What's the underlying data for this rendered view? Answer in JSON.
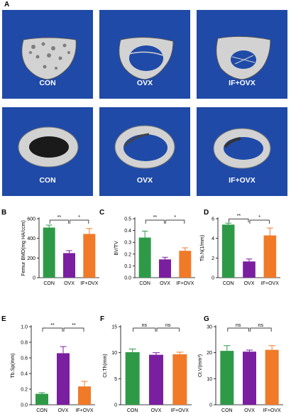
{
  "figure": {
    "panel_A_letter": "A",
    "ct_rows": [
      {
        "view": "trabecular",
        "tiles": [
          {
            "label": "CON",
            "state": "dense"
          },
          {
            "label": "OVX",
            "state": "sparse"
          },
          {
            "label": "IF+OVX",
            "state": "mid"
          }
        ]
      },
      {
        "view": "cortical",
        "tiles": [
          {
            "label": "CON",
            "state": "ring"
          },
          {
            "label": "OVX",
            "state": "ring"
          },
          {
            "label": "IF+OVX",
            "state": "ring"
          }
        ]
      }
    ]
  },
  "colors": {
    "CON": "#2e9a48",
    "OVX": "#7a1fa0",
    "IF+OVX": "#f07a28",
    "ct_background": "#1f4aa7",
    "bone": "#d2d2d2"
  },
  "chart_data": [
    {
      "panel": "B",
      "type": "bar",
      "categories": [
        "CON",
        "OVX",
        "IF+OVX"
      ],
      "values": [
        510,
        250,
        445
      ],
      "errors": [
        25,
        25,
        55
      ],
      "ylabel": "Femur BMD(mg HA/ccm)",
      "ylim": [
        0,
        600
      ],
      "yticks": [
        "0",
        "200",
        "400",
        "600"
      ],
      "sig": [
        {
          "pair": [
            0,
            1
          ],
          "label": "**"
        },
        {
          "pair": [
            1,
            2
          ],
          "label": "*"
        }
      ]
    },
    {
      "panel": "C",
      "type": "bar",
      "categories": [
        "CON",
        "OVX",
        "IF+OVX"
      ],
      "values": [
        0.34,
        0.155,
        0.228
      ],
      "errors": [
        0.055,
        0.018,
        0.025
      ],
      "ylabel": "BV/TV",
      "ylim": [
        0,
        0.5
      ],
      "yticks": [
        "0.0",
        "0.1",
        "0.2",
        "0.3",
        "0.4",
        "0.5"
      ],
      "sig": [
        {
          "pair": [
            0,
            1
          ],
          "label": "**"
        },
        {
          "pair": [
            1,
            2
          ],
          "label": "*"
        }
      ]
    },
    {
      "panel": "D",
      "type": "bar",
      "categories": [
        "CON",
        "OVX",
        "IF+OVX"
      ],
      "values": [
        5.4,
        1.65,
        4.3
      ],
      "errors": [
        0.15,
        0.25,
        0.75
      ],
      "ylabel": "Tb.N(1/mm)",
      "ylim": [
        0,
        6
      ],
      "yticks": [
        "0",
        "2",
        "4",
        "6"
      ],
      "sig": [
        {
          "pair": [
            0,
            1
          ],
          "label": "**"
        },
        {
          "pair": [
            1,
            2
          ],
          "label": "*"
        }
      ]
    },
    {
      "panel": "E",
      "type": "bar",
      "categories": [
        "CON",
        "OVX",
        "IF+OVX"
      ],
      "values": [
        0.14,
        0.66,
        0.235
      ],
      "errors": [
        0.015,
        0.085,
        0.065
      ],
      "ylabel": "Tb.Sp(mm)",
      "ylim": [
        0,
        1.0
      ],
      "yticks": [
        "0.0",
        "0.2",
        "0.4",
        "0.6",
        "0.8",
        "1.0"
      ],
      "sig": [
        {
          "pair": [
            0,
            1
          ],
          "label": "**"
        },
        {
          "pair": [
            1,
            2
          ],
          "label": "**"
        }
      ]
    },
    {
      "panel": "F",
      "type": "bar",
      "categories": [
        "CON",
        "OVX",
        "IF+OVX"
      ],
      "values": [
        10.1,
        9.6,
        9.7
      ],
      "errors": [
        0.6,
        0.4,
        0.4
      ],
      "ylabel": "Ct.Th(mm)",
      "ylim": [
        0,
        15
      ],
      "yticks": [
        "0",
        "5",
        "10",
        "15"
      ],
      "sig": [
        {
          "pair": [
            0,
            1
          ],
          "label": "ns"
        },
        {
          "pair": [
            1,
            2
          ],
          "label": "ns"
        }
      ]
    },
    {
      "panel": "G",
      "type": "bar",
      "categories": [
        "CON",
        "OVX",
        "IF+OVX"
      ],
      "values": [
        20.7,
        20.4,
        21.1
      ],
      "errors": [
        2.0,
        0.6,
        1.6
      ],
      "ylabel": "Ct.V(mm³)",
      "ylim": [
        0,
        30
      ],
      "yticks": [
        "0",
        "10",
        "20",
        "30"
      ],
      "sig": [
        {
          "pair": [
            0,
            1
          ],
          "label": "ns"
        },
        {
          "pair": [
            1,
            2
          ],
          "label": "ns"
        }
      ]
    }
  ]
}
